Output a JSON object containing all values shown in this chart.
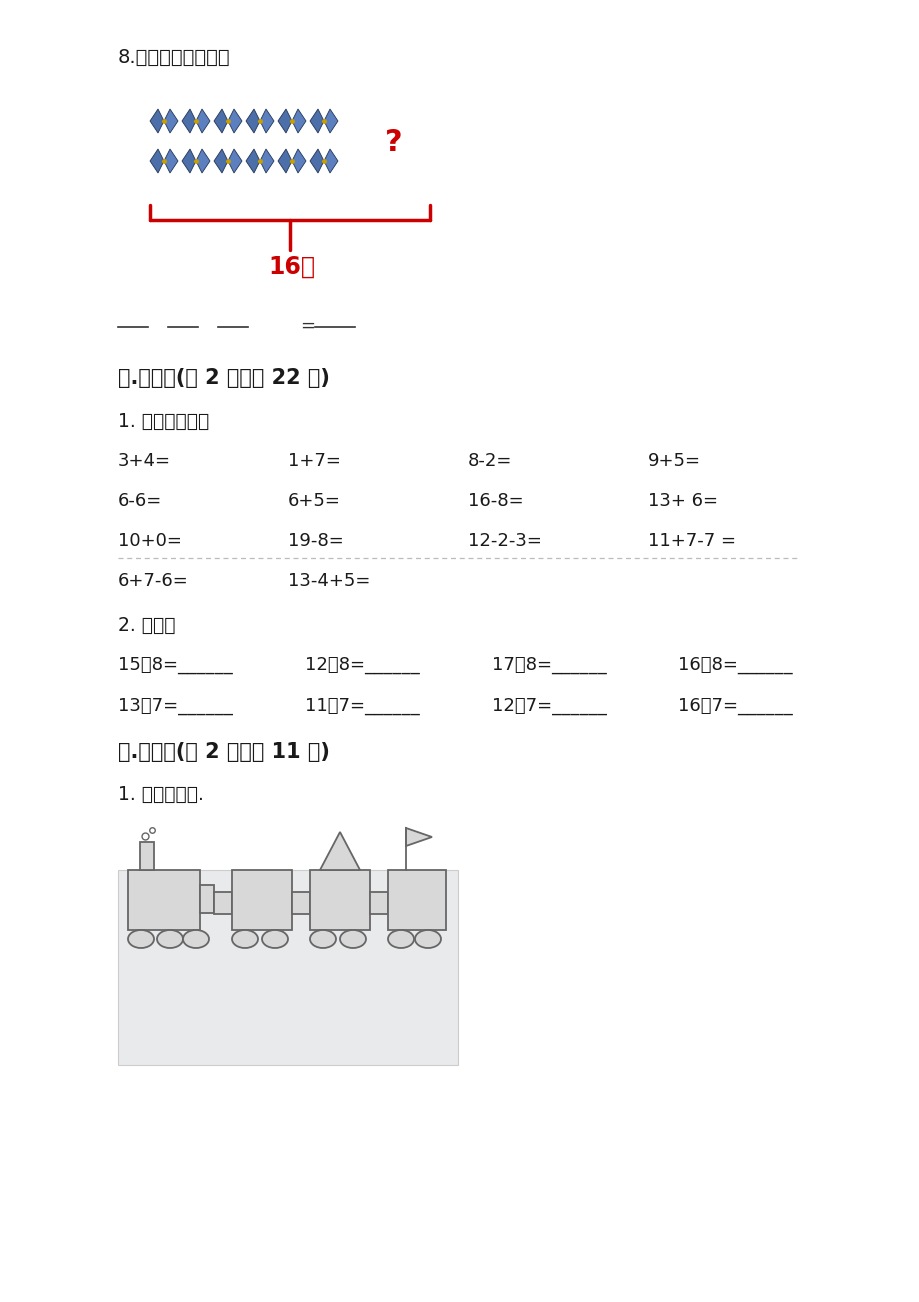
{
  "bg_color": "#ffffff",
  "text_color": "#1a1a1a",
  "red_color": "#cc0000",
  "section8_title": "8.看一看，填一填。",
  "brace_label": "16个",
  "question_mark": "?",
  "section4_title": "四.计算题(共 2 题，共 22 分)",
  "sub1_title": "1. 直接写得数。",
  "row1": [
    "3+4=",
    "1+7=",
    "8-2=",
    "9+5="
  ],
  "row2": [
    "6-6=",
    "6+5=",
    "16-8=",
    "13+ 6="
  ],
  "row3": [
    "10+0=",
    "19-8=",
    "12-2-3=",
    "11+7-7 ="
  ],
  "row4": [
    "6+7-6=",
    "13-4+5="
  ],
  "sub2_title": "2. 填空。",
  "fill_row1": [
    "15－8=______",
    "12－8=______",
    "17－8=______",
    "16－8=______"
  ],
  "fill_row2": [
    "13－7=______",
    "11－7=______",
    "12－7=______",
    "16－7=______"
  ],
  "section5_title": "五.作图题(共 2 题，共 11 分)",
  "draw_title": "1. 我的小火车.",
  "blank_parts": [
    "__",
    "__",
    "__",
    "__"
  ]
}
